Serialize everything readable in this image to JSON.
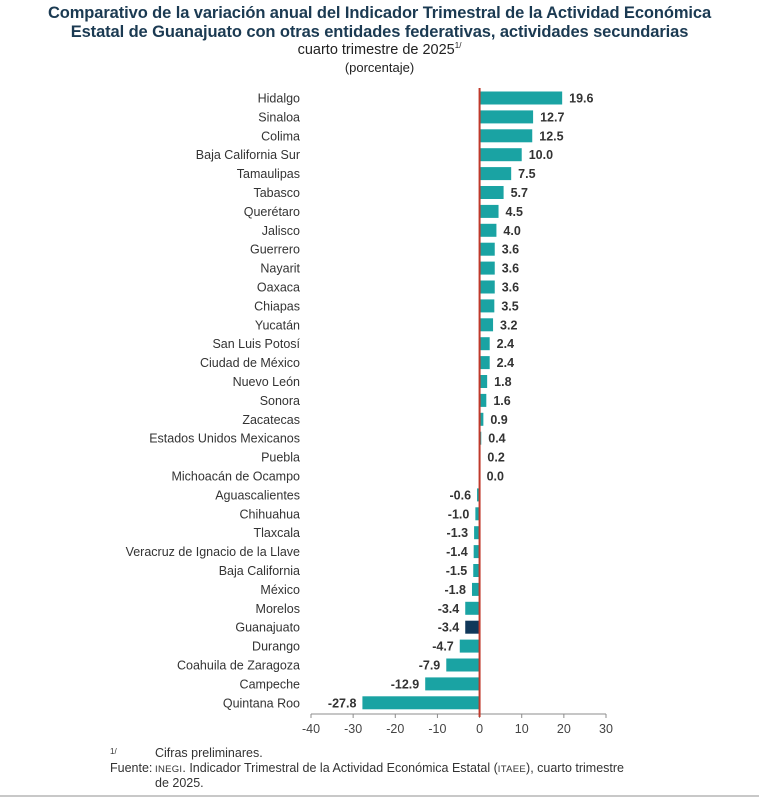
{
  "header": {
    "title_line1": "Comparativo de la variación anual del Indicador Trimestral de la Actividad Económica",
    "title_line2": "Estatal de Guanajuato con otras entidades federativas, actividades secundarias",
    "subtitle": "cuarto trimestre de 2025",
    "subtitle_note": "1/",
    "unit": "(porcentaje)"
  },
  "colors": {
    "bar": "#1aa3a3",
    "highlight": "#10385a",
    "zero_line": "#c0392b",
    "axis": "#8c8c8c",
    "label_text": "#333333",
    "value_text": "#333333"
  },
  "chart_data": {
    "type": "bar",
    "orientation": "horizontal",
    "title": "Comparativo de la variación anual del Indicador Trimestral de la Actividad Económica Estatal de Guanajuato con otras entidades federativas, actividades secundarias",
    "subtitle": "cuarto trimestre de 2025 (porcentaje)",
    "xlabel": "",
    "ylabel": "",
    "xlim": [
      -40,
      30
    ],
    "xticks": [
      -40,
      -30,
      -20,
      -10,
      0,
      10,
      20,
      30
    ],
    "grid": false,
    "legend": "none",
    "highlight_category": "Guanajuato",
    "categories": [
      "Hidalgo",
      "Sinaloa",
      "Colima",
      "Baja California Sur",
      "Tamaulipas",
      "Tabasco",
      "Querétaro",
      "Jalisco",
      "Guerrero",
      "Nayarit",
      "Oaxaca",
      "Chiapas",
      "Yucatán",
      "San Luis Potosí",
      "Ciudad de México",
      "Nuevo León",
      "Sonora",
      "Zacatecas",
      "Estados Unidos Mexicanos",
      "Puebla",
      "Michoacán de Ocampo",
      "Aguascalientes",
      "Chihuahua",
      "Tlaxcala",
      "Veracruz de Ignacio de la Llave",
      "Baja California",
      "México",
      "Morelos",
      "Guanajuato",
      "Durango",
      "Coahuila de Zaragoza",
      "Campeche",
      "Quintana Roo"
    ],
    "values": [
      19.6,
      12.7,
      12.5,
      10.0,
      7.5,
      5.7,
      4.5,
      4.0,
      3.6,
      3.6,
      3.6,
      3.5,
      3.2,
      2.4,
      2.4,
      1.8,
      1.6,
      0.9,
      0.4,
      0.2,
      0.0,
      -0.6,
      -1.0,
      -1.3,
      -1.4,
      -1.5,
      -1.8,
      -3.4,
      -3.4,
      -4.7,
      -7.9,
      -12.9,
      -27.8
    ],
    "value_labels": [
      "19.6",
      "12.7",
      "12.5",
      "10.0",
      "7.5",
      "5.7",
      "4.5",
      "4.0",
      "3.6",
      "3.6",
      "3.6",
      "3.5",
      "3.2",
      "2.4",
      "2.4",
      "1.8",
      "1.6",
      "0.9",
      "0.4",
      "0.2",
      "0.0",
      "-0.6",
      "-1.0",
      "-1.3",
      "-1.4",
      "-1.5",
      "-1.8",
      "-3.4",
      "-3.4",
      "-4.7",
      "-7.9",
      "-12.9",
      "-27.8"
    ]
  },
  "footer": {
    "note_marker": "1/",
    "note_text": "Cifras preliminares.",
    "source_label": "Fuente:",
    "source_org": "INEGI",
    "source_text_1": ". Indicador Trimestral de la Actividad Económica Estatal (",
    "source_abbr": "ITAEE",
    "source_text_2": "), cuarto trimestre",
    "source_text_3": "de 2025."
  }
}
